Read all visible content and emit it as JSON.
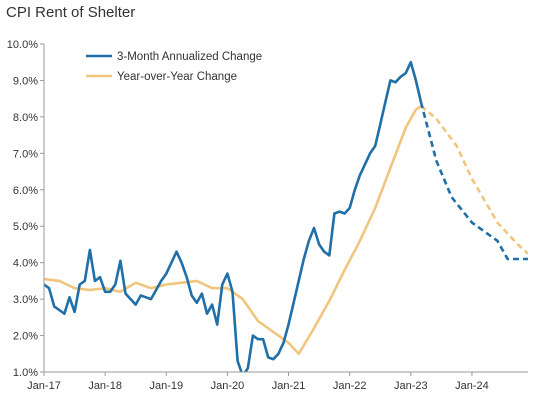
{
  "chart_data": {
    "type": "line",
    "title": "CPI Rent of Shelter",
    "xlabel": "",
    "ylabel": "",
    "x_ticks": [
      "Jan-17",
      "Jan-18",
      "Jan-19",
      "Jan-20",
      "Jan-21",
      "Jan-22",
      "Jan-23",
      "Jan-24"
    ],
    "y_ticks": [
      "1.0%",
      "2.0%",
      "3.0%",
      "4.0%",
      "5.0%",
      "6.0%",
      "7.0%",
      "8.0%",
      "9.0%",
      "10.0%"
    ],
    "ylim": [
      1.0,
      10.0
    ],
    "xlim": [
      "2017-01",
      "2024-12"
    ],
    "grid": false,
    "legend_position": "top-left",
    "series": [
      {
        "name": "3-Month Annualized Change",
        "color": "#1f6fa8",
        "values": [
          [
            "2017-01",
            3.4
          ],
          [
            "2017-02",
            3.3
          ],
          [
            "2017-03",
            2.8
          ],
          [
            "2017-04",
            2.7
          ],
          [
            "2017-05",
            2.6
          ],
          [
            "2017-06",
            3.05
          ],
          [
            "2017-07",
            2.65
          ],
          [
            "2017-08",
            3.4
          ],
          [
            "2017-09",
            3.5
          ],
          [
            "2017-10",
            4.35
          ],
          [
            "2017-11",
            3.5
          ],
          [
            "2017-12",
            3.6
          ],
          [
            "2018-01",
            3.2
          ],
          [
            "2018-02",
            3.2
          ],
          [
            "2018-03",
            3.4
          ],
          [
            "2018-04",
            4.05
          ],
          [
            "2018-05",
            3.15
          ],
          [
            "2018-06",
            3.0
          ],
          [
            "2018-07",
            2.85
          ],
          [
            "2018-08",
            3.1
          ],
          [
            "2018-09",
            3.05
          ],
          [
            "2018-10",
            3.0
          ],
          [
            "2018-11",
            3.25
          ],
          [
            "2018-12",
            3.5
          ],
          [
            "2019-01",
            3.7
          ],
          [
            "2019-02",
            4.0
          ],
          [
            "2019-03",
            4.3
          ],
          [
            "2019-04",
            4.0
          ],
          [
            "2019-05",
            3.6
          ],
          [
            "2019-06",
            3.1
          ],
          [
            "2019-07",
            2.9
          ],
          [
            "2019-08",
            3.15
          ],
          [
            "2019-09",
            2.6
          ],
          [
            "2019-10",
            2.85
          ],
          [
            "2019-11",
            2.3
          ],
          [
            "2019-12",
            3.4
          ],
          [
            "2020-01",
            3.7
          ],
          [
            "2020-02",
            3.2
          ],
          [
            "2020-03",
            1.3
          ],
          [
            "2020-04",
            0.9
          ],
          [
            "2020-05",
            1.1
          ],
          [
            "2020-06",
            2.0
          ],
          [
            "2020-07",
            1.9
          ],
          [
            "2020-08",
            1.9
          ],
          [
            "2020-09",
            1.4
          ],
          [
            "2020-10",
            1.35
          ],
          [
            "2020-11",
            1.5
          ],
          [
            "2020-12",
            1.8
          ],
          [
            "2021-01",
            2.3
          ],
          [
            "2021-02",
            2.9
          ],
          [
            "2021-03",
            3.5
          ],
          [
            "2021-04",
            4.1
          ],
          [
            "2021-05",
            4.6
          ],
          [
            "2021-06",
            4.95
          ],
          [
            "2021-07",
            4.5
          ],
          [
            "2021-08",
            4.3
          ],
          [
            "2021-09",
            4.2
          ],
          [
            "2021-10",
            5.35
          ],
          [
            "2021-11",
            5.4
          ],
          [
            "2021-12",
            5.35
          ],
          [
            "2022-01",
            5.5
          ],
          [
            "2022-02",
            6.0
          ],
          [
            "2022-03",
            6.4
          ],
          [
            "2022-04",
            6.7
          ],
          [
            "2022-05",
            7.0
          ],
          [
            "2022-06",
            7.2
          ],
          [
            "2022-07",
            7.8
          ],
          [
            "2022-08",
            8.4
          ],
          [
            "2022-09",
            9.0
          ],
          [
            "2022-10",
            8.95
          ],
          [
            "2022-11",
            9.1
          ],
          [
            "2022-12",
            9.2
          ],
          [
            "2023-01",
            9.5
          ],
          [
            "2023-02",
            9.0
          ],
          [
            "2023-03",
            8.4
          ]
        ]
      },
      {
        "name": "3-Month Annualized Change (projected)",
        "color": "#1f6fa8",
        "dashed": true,
        "values": [
          [
            "2023-03",
            8.4
          ],
          [
            "2023-06",
            6.8
          ],
          [
            "2023-09",
            5.8
          ],
          [
            "2024-01",
            5.1
          ],
          [
            "2024-06",
            4.6
          ],
          [
            "2024-08",
            4.1
          ],
          [
            "2024-12",
            4.1
          ]
        ]
      },
      {
        "name": "Year-over-Year Change",
        "color": "#f0c67f",
        "values": [
          [
            "2017-01",
            3.55
          ],
          [
            "2017-04",
            3.5
          ],
          [
            "2017-07",
            3.3
          ],
          [
            "2017-10",
            3.25
          ],
          [
            "2018-01",
            3.3
          ],
          [
            "2018-04",
            3.2
          ],
          [
            "2018-07",
            3.45
          ],
          [
            "2018-10",
            3.3
          ],
          [
            "2019-01",
            3.4
          ],
          [
            "2019-04",
            3.45
          ],
          [
            "2019-07",
            3.5
          ],
          [
            "2019-10",
            3.3
          ],
          [
            "2020-01",
            3.3
          ],
          [
            "2020-04",
            3.0
          ],
          [
            "2020-07",
            2.4
          ],
          [
            "2020-10",
            2.1
          ],
          [
            "2021-01",
            1.8
          ],
          [
            "2021-03",
            1.5
          ],
          [
            "2021-06",
            2.2
          ],
          [
            "2021-09",
            2.95
          ],
          [
            "2021-12",
            3.8
          ],
          [
            "2022-03",
            4.6
          ],
          [
            "2022-06",
            5.5
          ],
          [
            "2022-09",
            6.6
          ],
          [
            "2022-12",
            7.7
          ],
          [
            "2023-02",
            8.2
          ],
          [
            "2023-03",
            8.3
          ]
        ]
      },
      {
        "name": "Year-over-Year Change (projected)",
        "color": "#f0c67f",
        "dashed": true,
        "values": [
          [
            "2023-03",
            8.3
          ],
          [
            "2023-06",
            7.95
          ],
          [
            "2023-10",
            7.2
          ],
          [
            "2024-01",
            6.3
          ],
          [
            "2024-06",
            5.1
          ],
          [
            "2024-10",
            4.5
          ],
          [
            "2024-12",
            4.25
          ]
        ]
      }
    ],
    "legend": [
      {
        "label": "3-Month Annualized Change",
        "color": "#1f6fa8"
      },
      {
        "label": "Year-over-Year Change",
        "color": "#f0c67f"
      }
    ]
  }
}
